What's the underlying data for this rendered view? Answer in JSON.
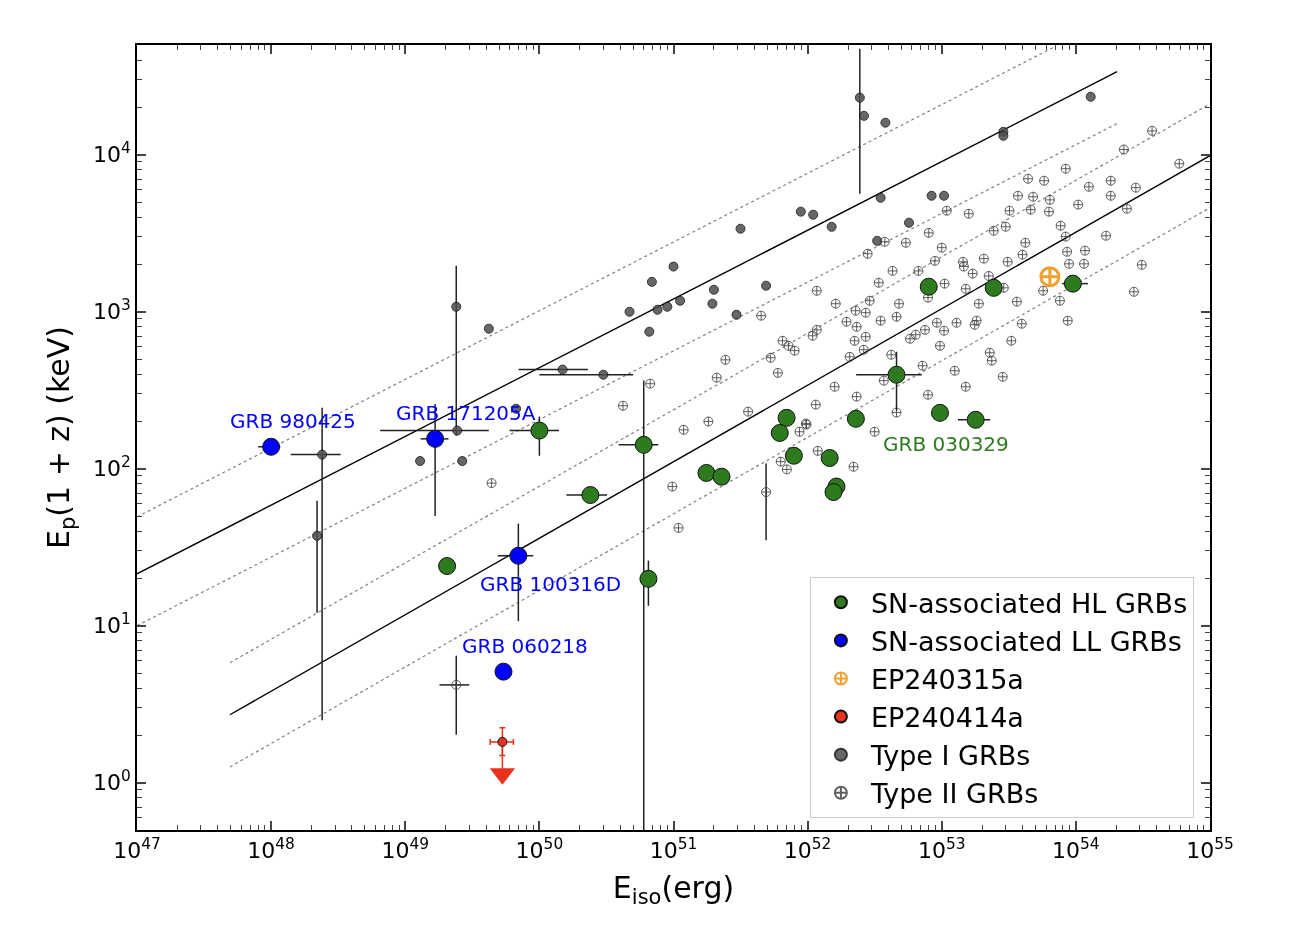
{
  "chart_data": {
    "type": "scatter",
    "xlabel": "E$_{iso}$(erg)",
    "ylabel": "E$_{p}$(1 + z) (keV)",
    "log": "xy",
    "legend": "bottom right",
    "xlim": [
      1e+47,
      1e+55
    ],
    "ylim": [
      0.5,
      50000
    ],
    "xticks": [
      {
        "value": 1e+47,
        "label": "10$^{47}$"
      },
      {
        "value": 1e+48,
        "label": "10$^{48}$"
      },
      {
        "value": 1e+49,
        "label": "10$^{49}$"
      },
      {
        "value": 1e+50,
        "label": "10$^{50}$"
      },
      {
        "value": 1e+51,
        "label": "10$^{51}$"
      },
      {
        "value": 1e+52,
        "label": "10$^{52}$"
      },
      {
        "value": 1e+53,
        "label": "10$^{53}$"
      },
      {
        "value": 1e+54,
        "label": "10$^{54}$"
      },
      {
        "value": 1e+55,
        "label": "10$^{55}$"
      }
    ],
    "yticks": [
      {
        "value": 1,
        "label": "10$^{0}$"
      },
      {
        "value": 10,
        "label": "10$^{1}$"
      },
      {
        "value": 100,
        "label": "10$^{2}$"
      },
      {
        "value": 1000,
        "label": "10$^{3}$"
      },
      {
        "value": 10000,
        "label": "10$^{4}$"
      }
    ],
    "series": [
      {
        "name": "SN-associated HL GRBs",
        "type": "scatter",
        "marker": "circle",
        "color": "#2e7a1e",
        "x": [
          2.05e+49,
          1e+50,
          2.4e+50,
          6e+50,
          6.5e+50,
          1.76e+51,
          2.28e+51,
          6.97e+51,
          6.2e+51,
          7.9e+51,
          1.46e+52,
          1.64e+52,
          1.56e+52,
          2.29e+52,
          4.6e+52,
          9.7e+52,
          1.79e+53,
          8e+52,
          2.44e+53,
          9.5e+53
        ],
        "values": [
          24,
          175,
          68,
          142,
          19.9,
          94,
          89,
          211,
          169,
          121,
          117,
          77,
          71,
          208,
          397,
          227,
          205,
          1443,
          1420,
          1510
        ],
        "errors": [
          null,
          [
            121,
            215
          ],
          null,
          [
            0.5,
            365
          ],
          [
            13.4,
            26
          ],
          null,
          null,
          null,
          null,
          null,
          null,
          null,
          null,
          null,
          [
            234,
            556
          ],
          null,
          null,
          null,
          null,
          null
        ],
        "xerrors": [
          null,
          [
            6e+49,
            1.4e+50
          ],
          [
            1.59e+50,
            3.2e+50
          ],
          [
            3.9e+50,
            7.7e+50
          ],
          null,
          null,
          null,
          null,
          null,
          null,
          null,
          null,
          null,
          null,
          [
            2.3e+52,
            7.1e+52
          ],
          null,
          [
            1.32e+53,
            2.3e+53
          ],
          null,
          null,
          [
            7.9e+53,
            1.23e+54
          ]
        ]
      },
      {
        "name": "SN-associated LL GRBs",
        "type": "scatter",
        "marker": "circle",
        "color": "#0000ff",
        "x": [
          1e+48,
          1.67e+49,
          6.97e+49,
          5.4e+49
        ],
        "values": [
          138,
          155,
          27.9,
          5.1
        ],
        "errors": [
          null,
          [
            50,
            258
          ],
          [
            10.7,
            44.7
          ],
          null
        ],
        "xerrors": [
          [
            8e+47,
            1.17e+48
          ],
          [
            1.3e+49,
            2.1e+49
          ],
          [
            4.9e+49,
            9e+49
          ],
          null
        ]
      },
      {
        "name": "EP240315a",
        "type": "scatter",
        "marker": "cross",
        "color": "#f0a030",
        "x": [
          6.4e+53
        ],
        "values": [
          1670
        ]
      },
      {
        "name": "EP240414a",
        "type": "scatter",
        "marker": "circle",
        "color": "#e8321e",
        "x": [
          5.3e+49
        ],
        "values": [
          1.82
        ],
        "errors": [
          [
            1.49,
            2.24
          ]
        ],
        "xerrors": [
          [
            4.3e+49,
            6.4e+49
          ]
        ]
      },
      {
        "name": "Type I GRBs",
        "type": "scatter",
        "marker": "circle",
        "color": "#4d4d4d",
        "x": [
          2.2e+48,
          2.4e+48,
          1.29e+49,
          2.4e+49,
          2.44e+49,
          2.66e+49,
          4.2e+49,
          6.7e+49,
          1.49e+50,
          3e+50,
          4.7e+50,
          6.6e+50,
          6.9e+50,
          7.6e+50,
          9e+50,
          1e+51,
          1.12e+51,
          1.95e+51,
          2e+51,
          2.95e+51,
          3.16e+51,
          4.9e+51,
          8.9e+51,
          1.1e+52,
          1.51e+52,
          2.45e+52,
          2.63e+52,
          3.8e+52,
          3.3e+52,
          3.5e+52,
          5.7e+52,
          8.4e+52,
          1.04e+53,
          2.88e+53,
          2.88e+53,
          1.29e+54
        ],
        "values": [
          37.4,
          123,
          112,
          1076,
          175,
          112,
          780,
          241,
          428,
          397,
          1000,
          746,
          1550,
          1030,
          1076,
          1940,
          1175,
          1125,
          1380,
          957,
          3380,
          1465,
          4340,
          4150,
          3475,
          23100,
          17700,
          16000,
          2830,
          5320,
          3690,
          5480,
          5480,
          14000,
          13200,
          23400
        ],
        "errors": [
          [
            12.1,
            62.5
          ],
          [
            2.5,
            245
          ],
          null,
          [
            163,
            1963
          ],
          null,
          null,
          null,
          null,
          null,
          null,
          null,
          null,
          null,
          null,
          null,
          null,
          null,
          null,
          null,
          null,
          null,
          null,
          null,
          null,
          null,
          [
            5650,
            47300
          ],
          null,
          null,
          null,
          null,
          null,
          null,
          null,
          null,
          null,
          null
        ],
        "xerrors": [
          null,
          [
            1.4e+48,
            3.3e+48
          ],
          null,
          null,
          [
            6.5e+48,
            4.2e+49
          ],
          null,
          null,
          null,
          [
            7e+49,
            2.3e+50
          ],
          [
            1e+50,
            5e+50
          ],
          null,
          null,
          null,
          null,
          null,
          null,
          null,
          null,
          null,
          null,
          null,
          null,
          null,
          null,
          null,
          null,
          null,
          null,
          null,
          null,
          null,
          null,
          null,
          null,
          null,
          null
        ]
      },
      {
        "name": "Type II GRBs",
        "type": "scatter",
        "marker": "cross",
        "color": "#444444",
        "x": [
          2.4e+49,
          4.9e+51,
          1.17e+52,
          4.5e+51,
          2.44e+51,
          2.1e+51,
          1.82e+51,
          3.6e+51,
          5.3e+51,
          6e+51,
          6.5e+51,
          7.2e+51,
          8e+51,
          9.7e+51,
          8.7e+51,
          1.17e+52,
          1.09e+52,
          1.15e+52,
          1.62e+52,
          1.59e+52,
          1.95e+52,
          2.06e+52,
          2.24e+52,
          2.28e+52,
          2.32e+52,
          2.62e+52,
          2.71e+52,
          2.8e+52,
          2.9e+52,
          2.71e+52,
          3.39e+52,
          3.5e+52,
          3.76e+52,
          4.2e+52,
          4.3e+52,
          4.6e+52,
          4.8e+52,
          5.4e+52,
          5.8e+52,
          6.4e+52,
          6.7e+52,
          7.2e+52,
          7.5e+52,
          7.9e+52,
          8e+52,
          8.9e+52,
          9.2e+52,
          9.7e+52,
          1e+53,
          1.04e+53,
          1.05e+53,
          1.09e+53,
          1.25e+53,
          1.29e+53,
          1.44e+53,
          1.46e+53,
          1.51e+53,
          1.59e+53,
          1.7e+53,
          1.76e+53,
          1.82e+53,
          1.89e+53,
          2.06e+53,
          2.24e+53,
          2.28e+53,
          2.36e+53,
          2.44e+53,
          2.9e+53,
          2.85e+53,
          3e+53,
          3.1e+53,
          3.2e+53,
          3.63e+53,
          3.7e+53,
          3.95e+53,
          4e+53,
          4.2e+53,
          4.4e+53,
          4.8e+53,
          4.6e+53,
          5.8e+53,
          6.3e+53,
          6.4e+53,
          7.7e+53,
          8.4e+53,
          8.6e+53,
          8.7e+53,
          8.9e+53,
          1.04e+54,
          1.15e+54,
          1.17e+54,
          1.25e+54,
          1.68e+54,
          1.82e+54,
          1.82e+54,
          2.28e+54,
          2.4e+54,
          2.8e+54,
          3.1e+54,
          3.7e+54,
          2.71e+54,
          5.9e+54,
          8.4e+53,
          7.6e+53,
          5.7e+53,
          3.3e+53,
          1.51e+53,
          7.9e+52,
          4.6e+52,
          3.16e+52,
          2.32e+52,
          3.7e+52,
          2.2e+52,
          7e+51,
          6.3e+51,
          1.19e+52,
          9.8e+51,
          4.4e+49,
          6.7e+50,
          4.2e+50,
          9.8e+50,
          1.09e+51,
          1.19e+51
        ],
        "values": [
          4.2,
          71,
          1360,
          944,
          494,
          380,
          200,
          231,
          509,
          408,
          653,
          607,
          565,
          194,
          172,
          767,
          703,
          256,
          1125,
          333,
          863,
          516,
          653,
          1015,
          802,
          573,
          693,
          2340,
          1175,
          986,
          1530,
          877,
          2790,
          532,
          1820,
          929,
          1125,
          2750,
          673,
          714,
          1820,
          453,
          767,
          1230,
          3180,
          2110,
          851,
          607,
          2560,
          757,
          1510,
          4400,
          421,
          851,
          2080,
          1940,
          1400,
          4210,
          1750,
          826,
          877,
          1125,
          2180,
          1690,
          548,
          488,
          3280,
          1420,
          385,
          3480,
          2080,
          4400,
          1160,
          5480,
          839,
          2310,
          2750,
          7030,
          5400,
          4470,
          6830,
          4340,
          5160,
          3530,
          8150,
          2410,
          877,
          2020,
          4810,
          2020,
          2450,
          6250,
          3050,
          6830,
          5480,
          10800,
          4530,
          6170,
          1990,
          14200,
          1340,
          8770,
          3010,
          1175,
          1360,
          653,
          333,
          296,
          228,
          172,
          288,
          364,
          103,
          99,
          111,
          130,
          191,
          81,
          348,
          252,
          77,
          42,
          177
        ],
        "errors": [
          [
            2.02,
            6.45
          ],
          [
            35,
            108
          ],
          null,
          null,
          null,
          null,
          null,
          null,
          null,
          null,
          null,
          null,
          null,
          null,
          null,
          null,
          null,
          null,
          null,
          null,
          null,
          null,
          null,
          null,
          null,
          null,
          null,
          null,
          null,
          null,
          null,
          null,
          null,
          null,
          null,
          null,
          null,
          null,
          null,
          null,
          null,
          null,
          null,
          null,
          null,
          null,
          null,
          null,
          null,
          null,
          null,
          null,
          null,
          null,
          null,
          null,
          null,
          null,
          null,
          null,
          null,
          null,
          null,
          null,
          null,
          null,
          null,
          null,
          null,
          null,
          null,
          null,
          null,
          null,
          null,
          null,
          null,
          null,
          null,
          null,
          null,
          null,
          null,
          null,
          null,
          null,
          null,
          null,
          null,
          null,
          null,
          null,
          null,
          null,
          null,
          null,
          null,
          null,
          null,
          null,
          null,
          null,
          null,
          null,
          null,
          null,
          null,
          null,
          null,
          null,
          null,
          null,
          null,
          null,
          null,
          null,
          null,
          null,
          null,
          null,
          null,
          null,
          null
        ],
        "xerrors": [
          [
            1.8e+49,
            3e+49
          ],
          null,
          null,
          null,
          null,
          null,
          null,
          null,
          null,
          null,
          null,
          null,
          null,
          null,
          null,
          null,
          null,
          null,
          null,
          null,
          null,
          null,
          null,
          null,
          null,
          null,
          null,
          null,
          null,
          null,
          null,
          null,
          null,
          null,
          null,
          null,
          null,
          null,
          null,
          null,
          null,
          null,
          null,
          null,
          null,
          null,
          null,
          null,
          null,
          null,
          null,
          null,
          null,
          null,
          null,
          null,
          null,
          null,
          null,
          null,
          null,
          null,
          null,
          null,
          null,
          null,
          null,
          null,
          null,
          null,
          null,
          null,
          null,
          null,
          null,
          null,
          null,
          null,
          null,
          null,
          null,
          null,
          null,
          null,
          null,
          null,
          null,
          null,
          null,
          null,
          null,
          null,
          null,
          null,
          null,
          null,
          null,
          null,
          null,
          null,
          null,
          null,
          null,
          null,
          null,
          null,
          null,
          null,
          null,
          null,
          null,
          null,
          null,
          null,
          null,
          null,
          null,
          null,
          null,
          null,
          null,
          null,
          null
        ]
      },
      {
        "type": "scatter",
        "marker": "triangle",
        "color": "#e8321e",
        "x": [
          5.3e+49
        ],
        "values": [
          1.14
        ],
        "errors": [
          [
            1.14,
            1.82
          ]
        ]
      },
      {
        "type": "line",
        "color": "#000000",
        "line_style": "solid",
        "x": [
          1e+47,
          2.03e+54
        ],
        "values": [
          21.4,
          33800
        ]
      },
      {
        "type": "line",
        "color": "#000000",
        "line_style": "solid",
        "x": [
          4.93e+47,
          1e+55
        ],
        "values": [
          2.71,
          9860
        ]
      },
      {
        "type": "line",
        "color": "#808080",
        "line_style": "dotted",
        "x": [
          1e+47,
          6.78e+53
        ],
        "values": [
          49.4,
          48200
        ]
      },
      {
        "type": "line",
        "color": "#808080",
        "line_style": "dotted",
        "x": [
          1e+47,
          2.03e+54
        ],
        "values": [
          10,
          15800
        ]
      },
      {
        "type": "line",
        "color": "#808080",
        "line_style": "dotted",
        "x": [
          4.93e+47,
          1e+55
        ],
        "values": [
          5.81,
          21100
        ]
      },
      {
        "type": "line",
        "color": "#808080",
        "line_style": "dotted",
        "x": [
          4.93e+47,
          1e+55
        ],
        "values": [
          1.26,
          4600
        ]
      }
    ],
    "annotations": [
      {
        "text": "GRB 980425",
        "x": 1e+48,
        "y": 138
      },
      {
        "text": "GRB 171205A",
        "x": 1.67e+49,
        "y": 155
      },
      {
        "text": "GRB 100316D",
        "x": 6.97e+49,
        "y": 27.9
      },
      {
        "text": "GRB 060218",
        "x": 5.4e+49,
        "y": 5.1
      },
      {
        "text": "GRB 030329",
        "x": 2.29e+52,
        "y": 208
      }
    ]
  }
}
